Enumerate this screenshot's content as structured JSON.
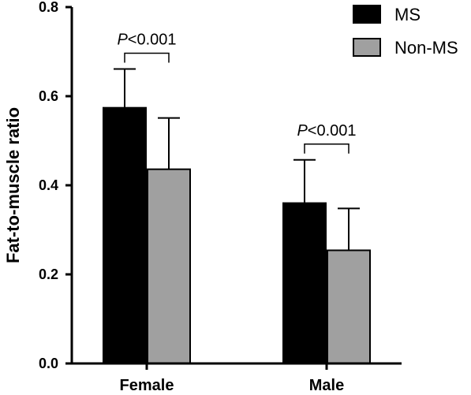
{
  "chart_data": {
    "type": "bar",
    "ylabel": "Fat-to-muscle ratio",
    "xlabel": "",
    "ylim": [
      0,
      0.8
    ],
    "yticks": [
      "0.0",
      "0.2",
      "0.4",
      "0.6",
      "0.8"
    ],
    "categories": [
      "Female",
      "Male"
    ],
    "series": [
      {
        "name": "MS",
        "color": "#000000",
        "values": [
          0.574,
          0.36
        ],
        "errors": [
          0.087,
          0.097
        ]
      },
      {
        "name": "Non-MS",
        "color": "#a0a0a0",
        "values": [
          0.436,
          0.254
        ],
        "errors": [
          0.115,
          0.094
        ]
      }
    ],
    "legend_position": "top-right",
    "annotations": [
      {
        "category": "Female",
        "p_italic": "P",
        "text": "<0.001"
      },
      {
        "category": "Male",
        "p_italic": "P",
        "text": "<0.001"
      }
    ]
  }
}
